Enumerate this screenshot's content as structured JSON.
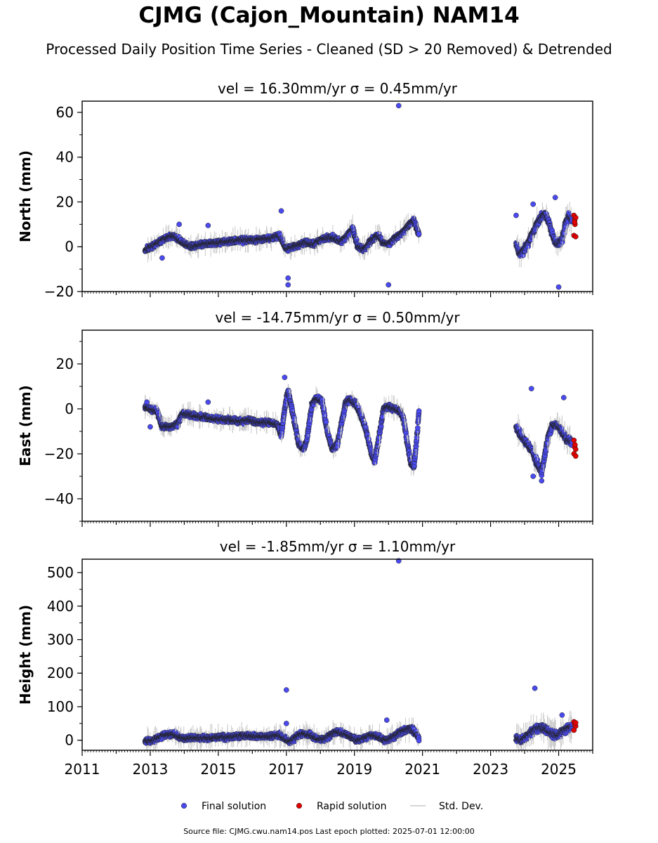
{
  "figure": {
    "title": "CJMG (Cajon_Mountain) NAM14",
    "subtitle": "Processed Daily Position Time Series - Cleaned (SD > 20 Removed) & Detrended",
    "footer": "Source file: CJMG.cwu.nam14.pos  Last epoch plotted: 2025-07-01 12:00:00"
  },
  "legend": {
    "placement": "bottom-center",
    "items": [
      {
        "label": "Final solution",
        "color": "#4a4af0"
      },
      {
        "label": "Rapid solution",
        "color": "#e00000"
      },
      {
        "label": "Std. Dev.",
        "color": "#c8c8c8"
      }
    ]
  },
  "chart_data": [
    {
      "type": "scatter",
      "title": "vel = 16.30mm/yr   σ = 0.45mm/yr",
      "ylabel": "North (mm)",
      "xlim": [
        2011,
        2026
      ],
      "ylim": [
        -20,
        65
      ],
      "yticks": [
        -20,
        0,
        20,
        40,
        60
      ],
      "xticks": [
        2011,
        2013,
        2015,
        2017,
        2019,
        2021,
        2023,
        2025
      ],
      "series": [
        {
          "name": "Final solution",
          "segments": [
            [
              2012.85,
              -1.5
            ],
            [
              2013.1,
              0.5
            ],
            [
              2013.4,
              3.5
            ],
            [
              2013.7,
              5
            ],
            [
              2013.95,
              2
            ],
            [
              2014.2,
              0
            ],
            [
              2014.5,
              1
            ],
            [
              2014.8,
              1.5
            ],
            [
              2015.1,
              2
            ],
            [
              2015.4,
              2.5
            ],
            [
              2015.7,
              3
            ],
            [
              2016.0,
              3
            ],
            [
              2016.3,
              3.5
            ],
            [
              2016.6,
              4
            ],
            [
              2016.8,
              5
            ],
            [
              2016.9,
              2
            ],
            [
              2017.0,
              -1
            ],
            [
              2017.2,
              0
            ],
            [
              2017.4,
              1
            ],
            [
              2017.6,
              2
            ],
            [
              2017.8,
              1
            ],
            [
              2018.0,
              3
            ],
            [
              2018.2,
              4
            ],
            [
              2018.4,
              4
            ],
            [
              2018.6,
              2
            ],
            [
              2018.8,
              5
            ],
            [
              2018.95,
              8
            ],
            [
              2019.1,
              0
            ],
            [
              2019.3,
              -1
            ],
            [
              2019.5,
              3
            ],
            [
              2019.7,
              5
            ],
            [
              2019.85,
              2
            ],
            [
              2020.0,
              1
            ],
            [
              2020.2,
              4
            ],
            [
              2020.4,
              6
            ],
            [
              2020.55,
              9
            ],
            [
              2020.75,
              12
            ],
            [
              2020.9,
              5
            ]
          ],
          "segments2": [
            [
              2023.75,
              1
            ],
            [
              2023.85,
              -3
            ],
            [
              2023.95,
              -2
            ],
            [
              2024.05,
              0
            ],
            [
              2024.2,
              5
            ],
            [
              2024.35,
              10
            ],
            [
              2024.5,
              13
            ],
            [
              2024.6,
              15
            ],
            [
              2024.7,
              12
            ],
            [
              2024.8,
              6
            ],
            [
              2024.9,
              2
            ],
            [
              2025.0,
              1
            ],
            [
              2025.1,
              3
            ],
            [
              2025.2,
              10
            ],
            [
              2025.3,
              14
            ],
            [
              2025.4,
              12
            ]
          ],
          "outliers": [
            [
              2020.3,
              63
            ],
            [
              2020.0,
              -17
            ],
            [
              2017.05,
              -14
            ],
            [
              2017.05,
              -17
            ],
            [
              2016.85,
              16
            ],
            [
              2023.75,
              14
            ],
            [
              2024.25,
              19
            ],
            [
              2024.9,
              22
            ],
            [
              2025.0,
              -18
            ],
            [
              2013.35,
              -5
            ],
            [
              2013.85,
              10
            ],
            [
              2014.7,
              9.5
            ]
          ]
        },
        {
          "name": "Rapid solution",
          "points": [
            [
              2025.45,
              14
            ],
            [
              2025.47,
              12
            ],
            [
              2025.48,
              10
            ],
            [
              2025.5,
              13
            ],
            [
              2025.45,
              5
            ],
            [
              2025.5,
              4.5
            ],
            [
              2025.47,
              11
            ]
          ]
        }
      ]
    },
    {
      "type": "scatter",
      "title": "vel = -14.75mm/yr   σ = 0.50mm/yr",
      "ylabel": "East (mm)",
      "xlim": [
        2011,
        2026
      ],
      "ylim": [
        -50,
        35
      ],
      "yticks": [
        -40,
        -20,
        0,
        20
      ],
      "xticks": [
        2011,
        2013,
        2015,
        2017,
        2019,
        2021,
        2023,
        2025
      ],
      "series": [
        {
          "name": "Final solution",
          "segments": [
            [
              2012.85,
              1
            ],
            [
              2013.0,
              0
            ],
            [
              2013.2,
              -1
            ],
            [
              2013.35,
              -8
            ],
            [
              2013.6,
              -8
            ],
            [
              2013.8,
              -7
            ],
            [
              2013.95,
              -2
            ],
            [
              2014.3,
              -3
            ],
            [
              2014.7,
              -4
            ],
            [
              2015.0,
              -4.5
            ],
            [
              2015.3,
              -5
            ],
            [
              2015.6,
              -5.5
            ],
            [
              2015.9,
              -5
            ],
            [
              2016.2,
              -6
            ],
            [
              2016.5,
              -6
            ],
            [
              2016.75,
              -7
            ],
            [
              2016.85,
              -12
            ],
            [
              2016.95,
              0
            ],
            [
              2017.05,
              8
            ],
            [
              2017.2,
              -3
            ],
            [
              2017.35,
              -15
            ],
            [
              2017.5,
              -18
            ],
            [
              2017.6,
              -14
            ],
            [
              2017.75,
              2
            ],
            [
              2017.9,
              5
            ],
            [
              2018.05,
              3
            ],
            [
              2018.2,
              -10
            ],
            [
              2018.35,
              -18
            ],
            [
              2018.5,
              -16
            ],
            [
              2018.6,
              -8
            ],
            [
              2018.75,
              3
            ],
            [
              2018.9,
              4
            ],
            [
              2019.05,
              2
            ],
            [
              2019.2,
              -3
            ],
            [
              2019.35,
              -10
            ],
            [
              2019.5,
              -20
            ],
            [
              2019.6,
              -23
            ],
            [
              2019.75,
              -10
            ],
            [
              2019.85,
              0
            ],
            [
              2020.0,
              1
            ],
            [
              2020.2,
              0
            ],
            [
              2020.35,
              -1
            ],
            [
              2020.45,
              -5
            ],
            [
              2020.55,
              -15
            ],
            [
              2020.65,
              -24
            ],
            [
              2020.75,
              -26
            ],
            [
              2020.85,
              -10
            ],
            [
              2020.9,
              0
            ]
          ],
          "segments2": [
            [
              2023.75,
              -8
            ],
            [
              2023.9,
              -12
            ],
            [
              2024.05,
              -15
            ],
            [
              2024.2,
              -18
            ],
            [
              2024.3,
              -22
            ],
            [
              2024.4,
              -25
            ],
            [
              2024.5,
              -28
            ],
            [
              2024.6,
              -20
            ],
            [
              2024.7,
              -12
            ],
            [
              2024.8,
              -8
            ],
            [
              2024.95,
              -7
            ],
            [
              2025.1,
              -10
            ],
            [
              2025.2,
              -13
            ],
            [
              2025.3,
              -14
            ],
            [
              2025.4,
              -15
            ]
          ],
          "outliers": [
            [
              2024.2,
              9
            ],
            [
              2025.15,
              5
            ],
            [
              2024.25,
              -30
            ],
            [
              2024.5,
              -32
            ],
            [
              2016.95,
              14
            ],
            [
              2013.0,
              -8
            ],
            [
              2012.9,
              3
            ],
            [
              2014.7,
              3
            ]
          ]
        },
        {
          "name": "Rapid solution",
          "points": [
            [
              2025.45,
              -14
            ],
            [
              2025.47,
              -17
            ],
            [
              2025.5,
              -18
            ],
            [
              2025.45,
              -20
            ],
            [
              2025.5,
              -21
            ],
            [
              2025.48,
              -16
            ]
          ]
        }
      ]
    },
    {
      "type": "scatter",
      "title": "vel = -1.85mm/yr   σ = 1.10mm/yr",
      "ylabel": "Height (mm)",
      "xlim": [
        2011,
        2026
      ],
      "ylim": [
        -30,
        540
      ],
      "yticks": [
        0,
        100,
        200,
        300,
        400,
        500
      ],
      "xticks": [
        2011,
        2013,
        2015,
        2017,
        2019,
        2021,
        2023,
        2025
      ],
      "xticklabels": [
        "2011",
        "2013",
        "2015",
        "2017",
        "2019",
        "2021",
        "2023",
        "2025"
      ],
      "series": [
        {
          "name": "Final solution",
          "segments": [
            [
              2012.85,
              -3
            ],
            [
              2013.1,
              0
            ],
            [
              2013.4,
              15
            ],
            [
              2013.7,
              18
            ],
            [
              2013.95,
              5
            ],
            [
              2014.3,
              8
            ],
            [
              2014.7,
              5
            ],
            [
              2015.0,
              8
            ],
            [
              2015.3,
              10
            ],
            [
              2015.6,
              12
            ],
            [
              2015.9,
              14
            ],
            [
              2016.2,
              10
            ],
            [
              2016.5,
              12
            ],
            [
              2016.8,
              15
            ],
            [
              2016.95,
              5
            ],
            [
              2017.1,
              -5
            ],
            [
              2017.3,
              10
            ],
            [
              2017.5,
              20
            ],
            [
              2017.7,
              15
            ],
            [
              2017.9,
              5
            ],
            [
              2018.1,
              0
            ],
            [
              2018.3,
              15
            ],
            [
              2018.5,
              25
            ],
            [
              2018.7,
              20
            ],
            [
              2018.9,
              10
            ],
            [
              2019.1,
              0
            ],
            [
              2019.3,
              5
            ],
            [
              2019.5,
              15
            ],
            [
              2019.7,
              10
            ],
            [
              2019.9,
              0
            ],
            [
              2020.1,
              5
            ],
            [
              2020.3,
              20
            ],
            [
              2020.5,
              30
            ],
            [
              2020.7,
              35
            ],
            [
              2020.9,
              5
            ]
          ],
          "segments2": [
            [
              2023.75,
              5
            ],
            [
              2023.9,
              0
            ],
            [
              2024.05,
              10
            ],
            [
              2024.2,
              25
            ],
            [
              2024.35,
              35
            ],
            [
              2024.5,
              40
            ],
            [
              2024.65,
              30
            ],
            [
              2024.8,
              20
            ],
            [
              2024.95,
              15
            ],
            [
              2025.1,
              25
            ],
            [
              2025.25,
              35
            ],
            [
              2025.4,
              40
            ]
          ],
          "outliers": [
            [
              2020.3,
              535
            ],
            [
              2017.0,
              150
            ],
            [
              2024.3,
              155
            ],
            [
              2017.0,
              50
            ],
            [
              2019.95,
              60
            ],
            [
              2025.1,
              75
            ]
          ]
        },
        {
          "name": "Rapid solution",
          "points": [
            [
              2025.45,
              55
            ],
            [
              2025.47,
              48
            ],
            [
              2025.5,
              42
            ],
            [
              2025.45,
              30
            ],
            [
              2025.5,
              52
            ]
          ]
        }
      ]
    }
  ]
}
